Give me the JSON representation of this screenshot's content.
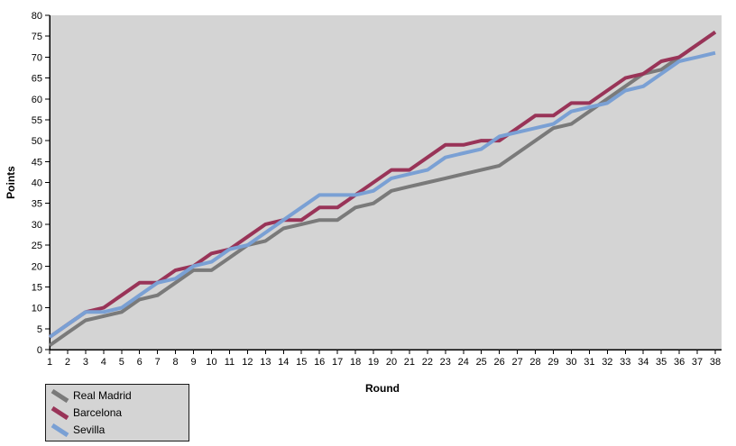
{
  "chart_data": {
    "type": "line",
    "title": "",
    "xlabel": "Round",
    "ylabel": "Points",
    "x": [
      1,
      2,
      3,
      4,
      5,
      6,
      7,
      8,
      9,
      10,
      11,
      12,
      13,
      14,
      15,
      16,
      17,
      18,
      19,
      20,
      21,
      22,
      23,
      24,
      25,
      26,
      27,
      28,
      29,
      30,
      31,
      32,
      33,
      34,
      35,
      36,
      37,
      38
    ],
    "xticks": [
      1,
      2,
      3,
      4,
      5,
      6,
      7,
      8,
      9,
      10,
      11,
      12,
      13,
      14,
      15,
      16,
      17,
      18,
      19,
      20,
      21,
      22,
      23,
      24,
      25,
      26,
      27,
      28,
      29,
      30,
      31,
      32,
      33,
      34,
      35,
      36,
      37,
      38
    ],
    "yticks": [
      0,
      5,
      10,
      15,
      20,
      25,
      30,
      35,
      40,
      45,
      50,
      55,
      60,
      65,
      70,
      75,
      80
    ],
    "ylim": [
      0,
      80
    ],
    "grid": false,
    "legend_position": "bottom-left-outside",
    "colors": {
      "plot_background": "#d4d4d4",
      "page_background": "#ffffff",
      "axis": "#000000",
      "text": "#000000"
    },
    "series": [
      {
        "name": "Real Madrid",
        "color": "#7a7a7a",
        "values": [
          1,
          4,
          7,
          8,
          9,
          12,
          13,
          16,
          19,
          19,
          22,
          25,
          26,
          29,
          30,
          31,
          31,
          34,
          35,
          38,
          39,
          40,
          41,
          42,
          43,
          44,
          47,
          50,
          53,
          54,
          57,
          60,
          63,
          66,
          67,
          70,
          73,
          76
        ]
      },
      {
        "name": "Barcelona",
        "color": "#993458",
        "values": [
          3,
          6,
          9,
          10,
          13,
          16,
          16,
          19,
          20,
          23,
          24,
          27,
          30,
          31,
          31,
          34,
          34,
          37,
          40,
          43,
          43,
          46,
          49,
          49,
          50,
          50,
          53,
          56,
          56,
          59,
          59,
          62,
          65,
          66,
          69,
          70,
          73,
          76
        ]
      },
      {
        "name": "Sevilla",
        "color": "#7aa0d4",
        "values": [
          3,
          6,
          9,
          9,
          10,
          13,
          16,
          17,
          20,
          21,
          24,
          25,
          28,
          31,
          34,
          37,
          37,
          37,
          38,
          41,
          42,
          43,
          46,
          47,
          48,
          51,
          52,
          53,
          54,
          57,
          58,
          59,
          62,
          63,
          66,
          69,
          70,
          71
        ]
      }
    ]
  },
  "labels": {
    "x_axis_title": "Round",
    "y_axis_title": "Points"
  },
  "legend": {
    "items": [
      {
        "label": "Real Madrid"
      },
      {
        "label": "Barcelona"
      },
      {
        "label": "Sevilla"
      }
    ]
  }
}
